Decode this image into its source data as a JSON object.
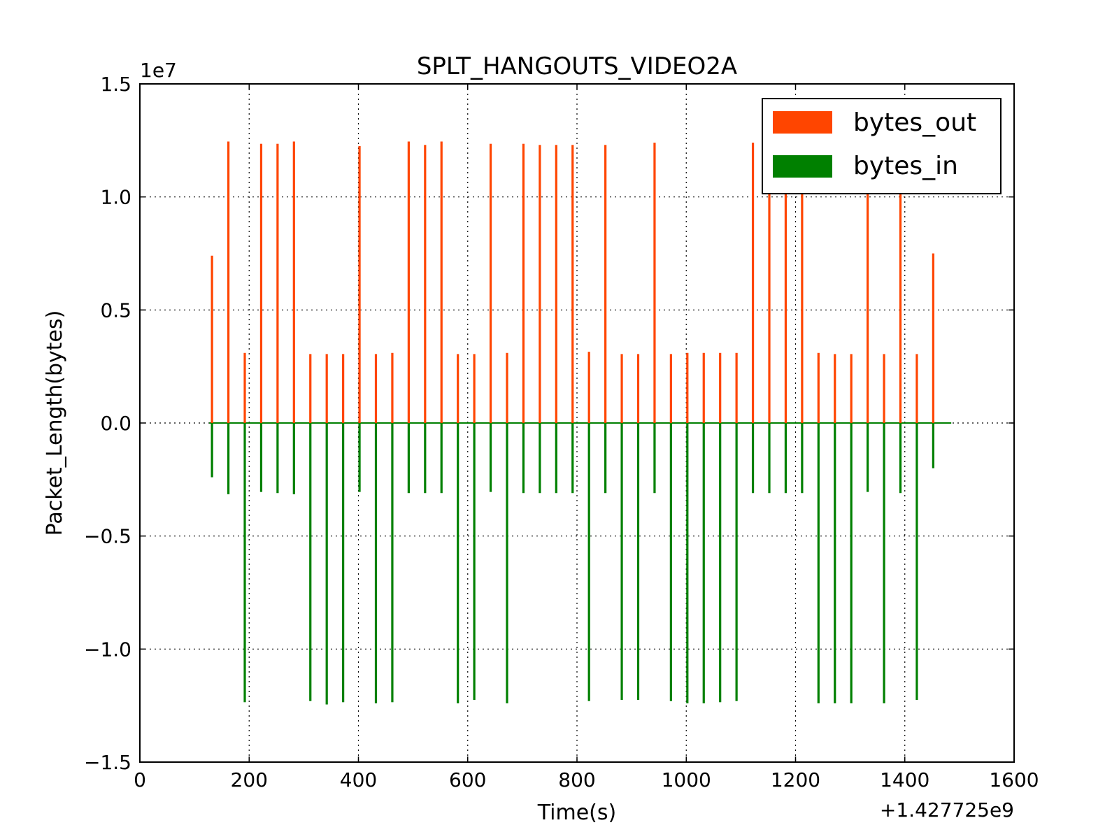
{
  "chart_data": {
    "type": "bar",
    "title": "SPLT_HANGOUTS_VIDEO2A",
    "xlabel": "Time(s)",
    "ylabel": "Packet_Length(bytes)",
    "x_offset_label": "+1.427725e9",
    "y_scale_label": "1e7",
    "xlim": [
      0,
      1600
    ],
    "ylim": [
      -1.5,
      1.5
    ],
    "x_ticks": [
      "0",
      "200",
      "400",
      "600",
      "800",
      "1000",
      "1200",
      "1400",
      "1600"
    ],
    "y_ticks": [
      "1.5",
      "1.0",
      "0.5",
      "0.0",
      "−0.5",
      "−1.0",
      "−1.5"
    ],
    "grid": true,
    "legend_position": "top-right",
    "series": [
      {
        "name": "bytes_out",
        "color": "#ff4500",
        "x": [
          132,
          162,
          192,
          222,
          252,
          282,
          312,
          342,
          372,
          402,
          432,
          462,
          492,
          522,
          552,
          582,
          612,
          642,
          672,
          702,
          732,
          762,
          792,
          822,
          852,
          882,
          912,
          942,
          972,
          1002,
          1032,
          1062,
          1092,
          1122,
          1152,
          1182,
          1212,
          1242,
          1272,
          1302,
          1332,
          1362,
          1392,
          1422,
          1452
        ],
        "values": [
          0.74,
          1.245,
          0.31,
          1.235,
          1.235,
          1.245,
          0.305,
          0.305,
          0.305,
          1.225,
          0.305,
          0.31,
          1.245,
          1.23,
          1.245,
          0.305,
          0.305,
          1.235,
          0.31,
          1.235,
          1.23,
          1.23,
          1.23,
          0.315,
          1.23,
          0.305,
          0.305,
          1.24,
          0.305,
          0.31,
          0.31,
          0.31,
          0.31,
          1.24,
          1.2,
          1.2,
          1.2,
          0.31,
          0.305,
          0.305,
          1.2,
          0.305,
          1.2,
          0.305,
          0.75
        ]
      },
      {
        "name": "bytes_in",
        "color": "#008000",
        "x": [
          132,
          162,
          192,
          222,
          252,
          282,
          312,
          342,
          372,
          402,
          432,
          462,
          492,
          522,
          552,
          582,
          612,
          642,
          672,
          702,
          732,
          762,
          792,
          822,
          852,
          882,
          912,
          942,
          972,
          1002,
          1032,
          1062,
          1092,
          1122,
          1152,
          1182,
          1212,
          1242,
          1272,
          1302,
          1332,
          1362,
          1392,
          1422,
          1452
        ],
        "values": [
          -0.24,
          -0.315,
          -1.235,
          -0.305,
          -0.31,
          -0.315,
          -1.23,
          -1.245,
          -1.235,
          -0.305,
          -1.24,
          -1.235,
          -0.31,
          -0.31,
          -0.31,
          -1.24,
          -1.225,
          -0.305,
          -1.24,
          -0.31,
          -0.31,
          -0.31,
          -0.31,
          -1.23,
          -0.31,
          -1.225,
          -1.225,
          -0.31,
          -1.23,
          -1.24,
          -1.24,
          -1.235,
          -1.23,
          -0.31,
          -0.31,
          -0.31,
          -0.31,
          -1.24,
          -1.24,
          -1.24,
          -0.305,
          -1.24,
          -0.31,
          -1.225,
          -0.2
        ]
      }
    ]
  }
}
